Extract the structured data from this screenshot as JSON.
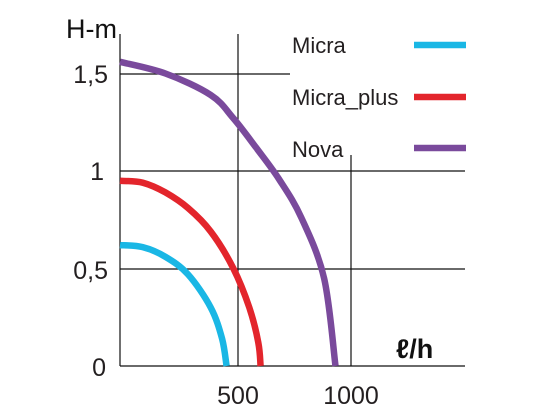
{
  "chart_data": {
    "type": "line",
    "ylabel": "H-m",
    "xlabel": "ℓ/h",
    "xlim": [
      0,
      1400
    ],
    "ylim": [
      0,
      1.7
    ],
    "x_ticks": [
      "500",
      "1000"
    ],
    "y_ticks": [
      "0",
      "0,5",
      "1",
      "1,5"
    ],
    "grid": "on",
    "legend_position": "top-right",
    "series": [
      {
        "name": "Micra",
        "color": "#1ab7e5",
        "points": [
          [
            0,
            0.62
          ],
          [
            100,
            0.61
          ],
          [
            200,
            0.56
          ],
          [
            300,
            0.47
          ],
          [
            400,
            0.3
          ],
          [
            450,
            0.14
          ],
          [
            470,
            0.0
          ]
        ]
      },
      {
        "name": "Micra_plus",
        "color": "#e3252c",
        "points": [
          [
            0,
            0.95
          ],
          [
            100,
            0.94
          ],
          [
            200,
            0.89
          ],
          [
            300,
            0.81
          ],
          [
            400,
            0.69
          ],
          [
            500,
            0.5
          ],
          [
            570,
            0.3
          ],
          [
            610,
            0.12
          ],
          [
            620,
            0.0
          ]
        ]
      },
      {
        "name": "Nova",
        "color": "#7a4a9c",
        "points": [
          [
            0,
            1.56
          ],
          [
            200,
            1.5
          ],
          [
            400,
            1.39
          ],
          [
            500,
            1.27
          ],
          [
            600,
            1.12
          ],
          [
            700,
            0.96
          ],
          [
            800,
            0.76
          ],
          [
            900,
            0.45
          ],
          [
            950,
            0.0
          ]
        ]
      }
    ]
  }
}
